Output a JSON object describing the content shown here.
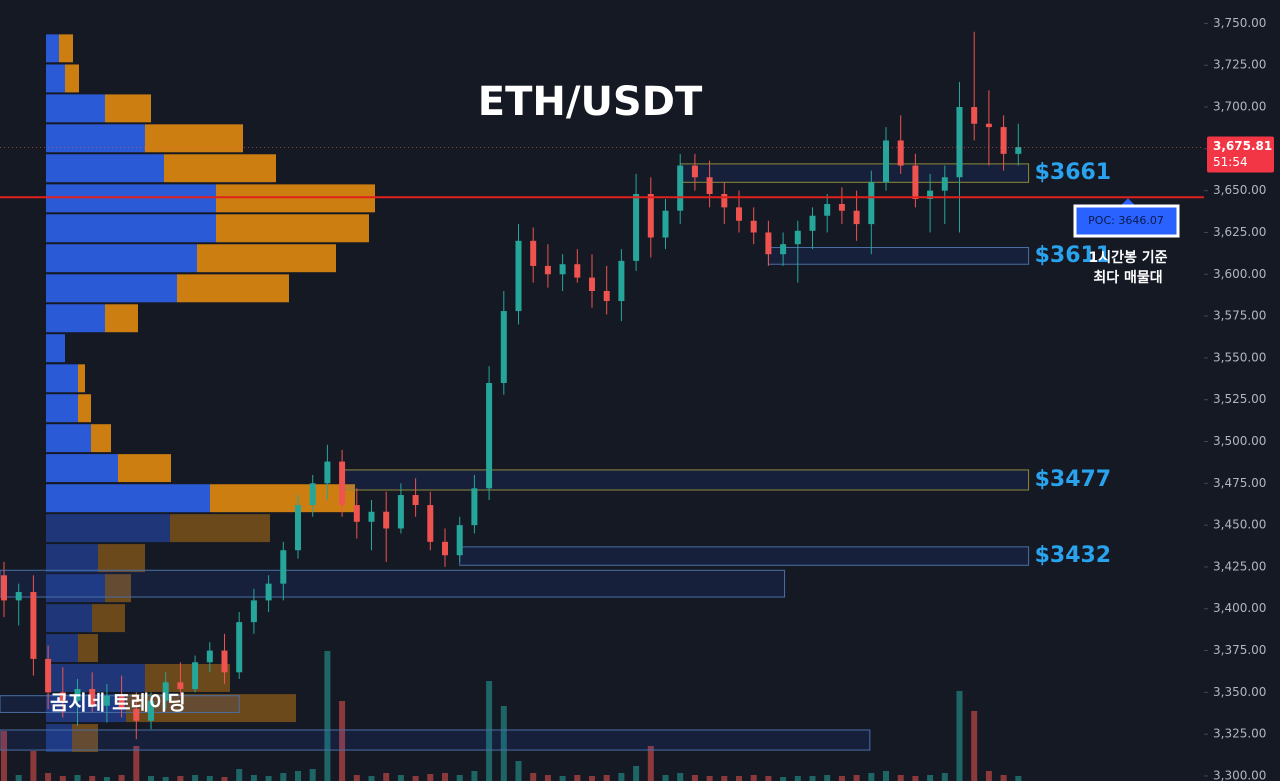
{
  "chart_data": {
    "type": "candlestick",
    "title": "ETH/USDT",
    "ylim": [
      3297,
      3764
    ],
    "yticks": [
      {
        "value": 3300,
        "label": "3,300.00"
      },
      {
        "value": 3325,
        "label": "3,325.00"
      },
      {
        "value": 3350,
        "label": "3,350.00"
      },
      {
        "value": 3375,
        "label": "3,375.00"
      },
      {
        "value": 3400,
        "label": "3,400.00"
      },
      {
        "value": 3425,
        "label": "3,425.00"
      },
      {
        "value": 3450,
        "label": "3,450.00"
      },
      {
        "value": 3475,
        "label": "3,475.00"
      },
      {
        "value": 3500,
        "label": "3,500.00"
      },
      {
        "value": 3525,
        "label": "3,525.00"
      },
      {
        "value": 3550,
        "label": "3,550.00"
      },
      {
        "value": 3575,
        "label": "3,575.00"
      },
      {
        "value": 3600,
        "label": "3,600.00"
      },
      {
        "value": 3625,
        "label": "3,625.00"
      },
      {
        "value": 3650,
        "label": "3,650.00"
      },
      {
        "value": 3675,
        "label": "3,675.00"
      },
      {
        "value": 3700,
        "label": "3,700.00"
      },
      {
        "value": 3725,
        "label": "3,725.00"
      },
      {
        "value": 3750,
        "label": "3,750.00"
      }
    ],
    "colors": {
      "up": "#26a69a",
      "down": "#ef5350",
      "buy": "#2c5ee0",
      "sell": "#d68410"
    },
    "candles": [
      [
        3420,
        3428,
        3395,
        3405
      ],
      [
        3405,
        3415,
        3390,
        3410
      ],
      [
        3410,
        3420,
        3360,
        3370
      ],
      [
        3370,
        3378,
        3340,
        3350
      ],
      [
        3350,
        3365,
        3335,
        3345
      ],
      [
        3345,
        3358,
        3330,
        3352
      ],
      [
        3352,
        3362,
        3338,
        3342
      ],
      [
        3342,
        3355,
        3332,
        3348
      ],
      [
        3348,
        3360,
        3335,
        3340
      ],
      [
        3340,
        3350,
        3322,
        3333
      ],
      [
        3333,
        3350,
        3328,
        3345
      ],
      [
        3345,
        3362,
        3340,
        3356
      ],
      [
        3356,
        3368,
        3348,
        3352
      ],
      [
        3352,
        3372,
        3350,
        3368
      ],
      [
        3368,
        3380,
        3362,
        3375
      ],
      [
        3375,
        3385,
        3355,
        3362
      ],
      [
        3362,
        3398,
        3358,
        3392
      ],
      [
        3392,
        3412,
        3385,
        3405
      ],
      [
        3405,
        3420,
        3398,
        3415
      ],
      [
        3415,
        3440,
        3405,
        3435
      ],
      [
        3435,
        3468,
        3430,
        3462
      ],
      [
        3462,
        3480,
        3455,
        3475
      ],
      [
        3475,
        3498,
        3465,
        3488
      ],
      [
        3488,
        3495,
        3455,
        3462
      ],
      [
        3462,
        3472,
        3442,
        3452
      ],
      [
        3452,
        3465,
        3435,
        3458
      ],
      [
        3458,
        3470,
        3428,
        3448
      ],
      [
        3448,
        3475,
        3445,
        3468
      ],
      [
        3468,
        3478,
        3455,
        3462
      ],
      [
        3462,
        3470,
        3435,
        3440
      ],
      [
        3440,
        3448,
        3425,
        3432
      ],
      [
        3432,
        3455,
        3428,
        3450
      ],
      [
        3450,
        3480,
        3445,
        3472
      ],
      [
        3472,
        3545,
        3465,
        3535
      ],
      [
        3535,
        3590,
        3528,
        3578
      ],
      [
        3578,
        3630,
        3570,
        3620
      ],
      [
        3620,
        3628,
        3595,
        3605
      ],
      [
        3605,
        3618,
        3592,
        3600
      ],
      [
        3600,
        3612,
        3590,
        3606
      ],
      [
        3606,
        3615,
        3595,
        3598
      ],
      [
        3598,
        3612,
        3580,
        3590
      ],
      [
        3590,
        3605,
        3576,
        3584
      ],
      [
        3584,
        3615,
        3572,
        3608
      ],
      [
        3608,
        3660,
        3602,
        3648
      ],
      [
        3648,
        3658,
        3610,
        3622
      ],
      [
        3622,
        3645,
        3615,
        3638
      ],
      [
        3638,
        3672,
        3630,
        3665
      ],
      [
        3665,
        3672,
        3650,
        3658
      ],
      [
        3658,
        3668,
        3640,
        3648
      ],
      [
        3648,
        3655,
        3630,
        3640
      ],
      [
        3640,
        3650,
        3625,
        3632
      ],
      [
        3632,
        3640,
        3618,
        3625
      ],
      [
        3625,
        3632,
        3605,
        3612
      ],
      [
        3612,
        3625,
        3605,
        3618
      ],
      [
        3618,
        3632,
        3595,
        3626
      ],
      [
        3626,
        3640,
        3615,
        3635
      ],
      [
        3635,
        3648,
        3625,
        3642
      ],
      [
        3642,
        3652,
        3630,
        3638
      ],
      [
        3638,
        3650,
        3620,
        3630
      ],
      [
        3630,
        3662,
        3612,
        3655
      ],
      [
        3655,
        3688,
        3650,
        3680
      ],
      [
        3680,
        3695,
        3660,
        3665
      ],
      [
        3665,
        3672,
        3640,
        3645
      ],
      [
        3645,
        3660,
        3625,
        3650
      ],
      [
        3650,
        3665,
        3630,
        3658
      ],
      [
        3658,
        3715,
        3625,
        3700
      ],
      [
        3700,
        3745,
        3680,
        3690
      ],
      [
        3690,
        3710,
        3665,
        3688
      ],
      [
        3688,
        3695,
        3662,
        3672
      ],
      [
        3672,
        3690,
        3665,
        3676
      ]
    ],
    "volume": [
      50,
      6,
      30,
      8,
      5,
      6,
      5,
      4,
      6,
      35,
      5,
      4,
      5,
      6,
      5,
      4,
      12,
      6,
      5,
      8,
      10,
      12,
      130,
      80,
      6,
      5,
      8,
      6,
      5,
      7,
      8,
      6,
      10,
      100,
      75,
      20,
      8,
      6,
      5,
      6,
      5,
      6,
      8,
      15,
      35,
      6,
      8,
      6,
      5,
      5,
      5,
      6,
      5,
      4,
      5,
      5,
      6,
      5,
      6,
      8,
      10,
      6,
      5,
      6,
      8,
      90,
      70,
      10,
      6,
      5
    ],
    "volume_profile": {
      "row_size": 17.9,
      "rows": [
        {
          "price": 3735.1,
          "buy": 13,
          "sell": 14
        },
        {
          "price": 3717.1,
          "buy": 19,
          "sell": 14
        },
        {
          "price": 3699.2,
          "buy": 59,
          "sell": 46
        },
        {
          "price": 3681.3,
          "buy": 99,
          "sell": 98
        },
        {
          "price": 3663.4,
          "buy": 118,
          "sell": 112
        },
        {
          "price": 3645.4,
          "buy": 170,
          "sell": 159
        },
        {
          "price": 3627.5,
          "buy": 170,
          "sell": 153
        },
        {
          "price": 3609.6,
          "buy": 151,
          "sell": 139
        },
        {
          "price": 3591.6,
          "buy": 131,
          "sell": 112
        },
        {
          "price": 3573.7,
          "buy": 59,
          "sell": 33
        },
        {
          "price": 3555.8,
          "buy": 19,
          "sell": 0
        },
        {
          "price": 3537.8,
          "buy": 32,
          "sell": 7
        },
        {
          "price": 3519.9,
          "buy": 32,
          "sell": 13
        },
        {
          "price": 3502.0,
          "buy": 45,
          "sell": 20
        },
        {
          "price": 3484.1,
          "buy": 72,
          "sell": 53
        },
        {
          "price": 3466.1,
          "buy": 164,
          "sell": 145
        },
        {
          "price": 3448.2,
          "buy": 124,
          "sell": 100
        },
        {
          "price": 3430.3,
          "buy": 52,
          "sell": 47
        },
        {
          "price": 3412.3,
          "buy": 59,
          "sell": 26
        },
        {
          "price": 3394.4,
          "buy": 46,
          "sell": 33
        },
        {
          "price": 3376.5,
          "buy": 32,
          "sell": 20
        },
        {
          "price": 3358.6,
          "buy": 99,
          "sell": 85
        },
        {
          "price": 3340.6,
          "buy": 80,
          "sell": 170
        },
        {
          "price": 3322.7,
          "buy": 26,
          "sell": 26
        }
      ]
    },
    "poc": {
      "value": 3646.07,
      "label": "POC: 3646.07"
    },
    "current_price": {
      "value": 3675.81,
      "label": "3,675.81"
    },
    "countdown": "51:54",
    "zones": [
      {
        "label": "$3661",
        "low": 3655,
        "high": 3666,
        "start": 46,
        "end": 69.7
      },
      {
        "label": "$3611",
        "low": 3606,
        "high": 3616,
        "start": 52,
        "end": 69.7
      },
      {
        "label": "$3477",
        "low": 3471,
        "high": 3483,
        "start": 23,
        "end": 69.7
      },
      {
        "label": "$3432",
        "low": 3426,
        "high": 3437,
        "start": 31,
        "end": 69.7
      },
      {
        "low": 3407,
        "high": 3423,
        "start": -0.3,
        "end": 53.1
      },
      {
        "low": 3338,
        "high": 3348,
        "start": -0.3,
        "end": 16
      },
      {
        "low": 3315.5,
        "high": 3327.5,
        "start": -0.3,
        "end": 58.9
      }
    ],
    "annotation": [
      "1시간봉 기준",
      "최다 매물대"
    ],
    "watermark": "곰지네 트레이딩"
  }
}
